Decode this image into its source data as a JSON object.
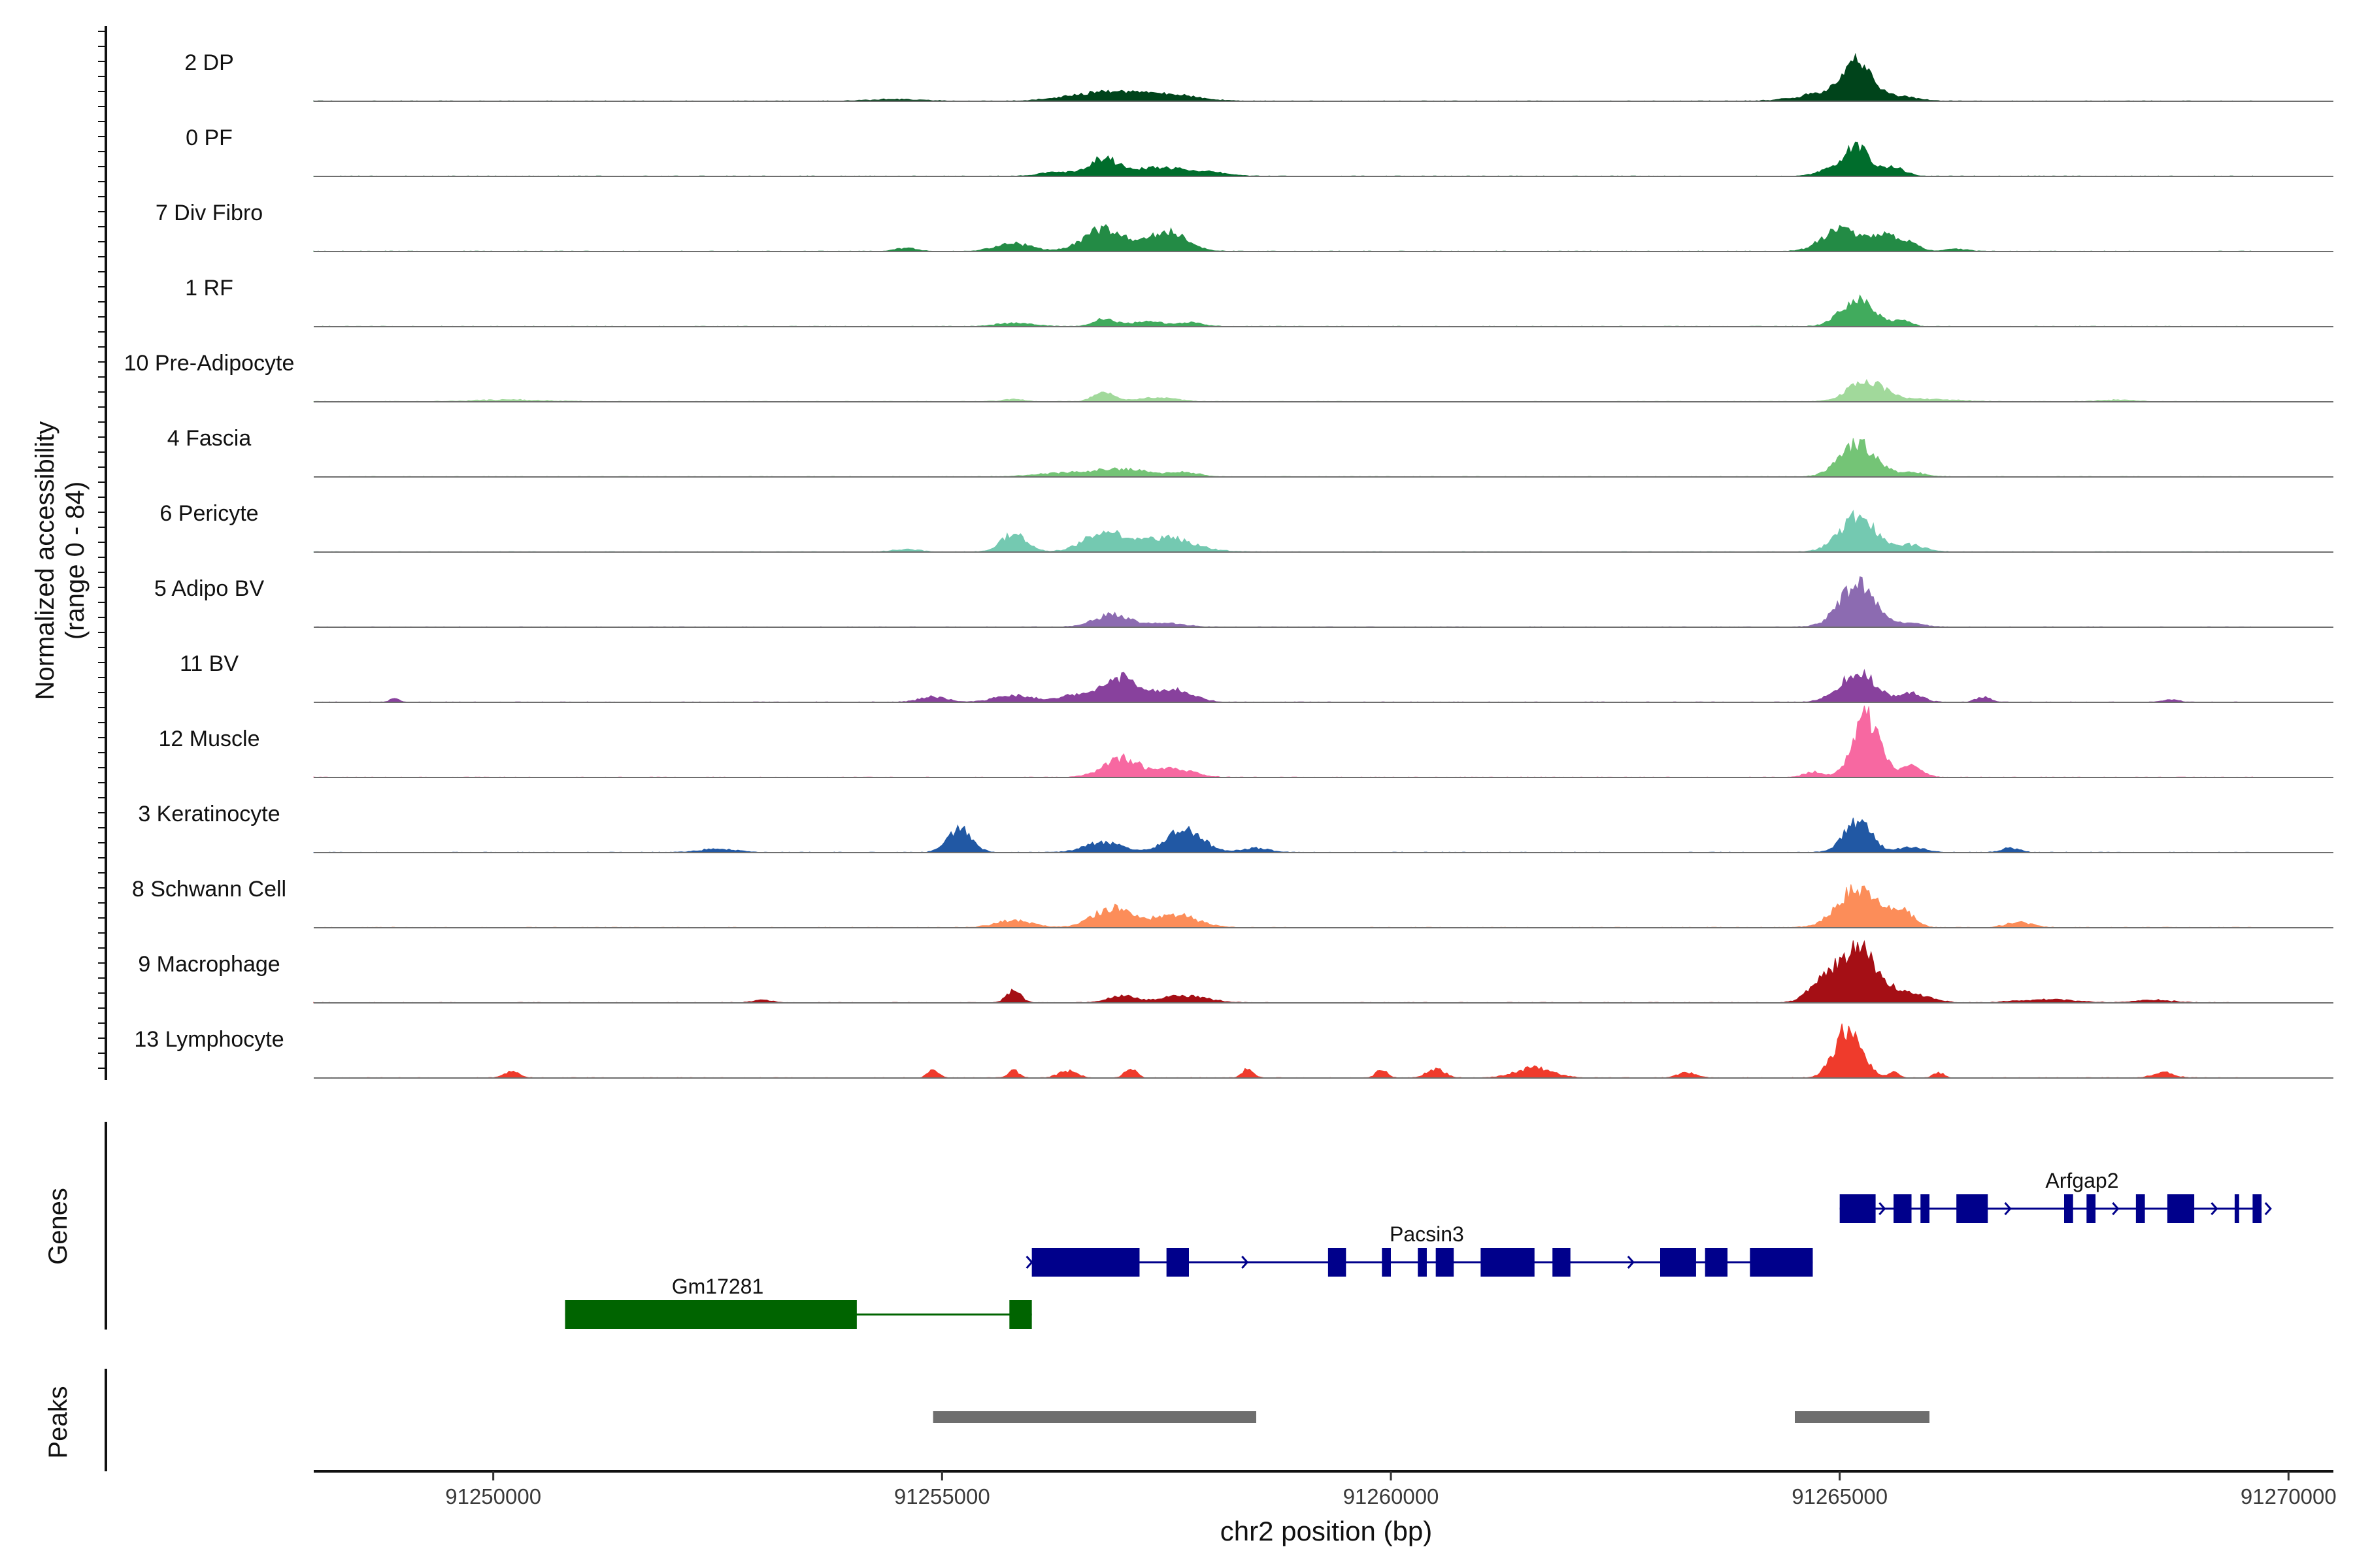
{
  "chart_data": {
    "type": "area",
    "chromosome": "chr2",
    "xlabel": "chr2 position (bp)",
    "xlim": [
      91248000,
      91270500
    ],
    "x_ticks": [
      91250000,
      91255000,
      91260000,
      91265000,
      91270000
    ],
    "x_tick_labels": [
      "91250000",
      "91255000",
      "91260000",
      "91265000",
      "91270000"
    ],
    "ylabel_line1": "Normalized accessibility",
    "ylabel_line2": "(range 0 - 84)",
    "y_range": [
      0,
      84
    ],
    "panel_labels": {
      "genes": "Genes",
      "peaks": "Peaks"
    },
    "background_noise_range": [
      91248000,
      91269600
    ],
    "tracks": [
      {
        "name": "2 DP",
        "color": "#00441b",
        "peaks": [
          [
            91256800,
            10,
            380
          ],
          [
            91257500,
            7,
            320
          ],
          [
            91254500,
            2,
            300
          ],
          [
            91265200,
            36,
            150
          ],
          [
            91265000,
            12,
            350
          ],
          [
            91265700,
            4,
            180
          ]
        ]
      },
      {
        "name": "0 PF",
        "color": "#006d2c",
        "peaks": [
          [
            91256300,
            5,
            200
          ],
          [
            91256800,
            20,
            150
          ],
          [
            91257400,
            10,
            300
          ],
          [
            91258000,
            4,
            200
          ],
          [
            91265200,
            34,
            140
          ],
          [
            91265600,
            10,
            120
          ],
          [
            91264900,
            8,
            150
          ]
        ]
      },
      {
        "name": "7 Div Fibro",
        "color": "#238b45",
        "peaks": [
          [
            91254600,
            4,
            120
          ],
          [
            91255800,
            9,
            200
          ],
          [
            91256800,
            26,
            220
          ],
          [
            91257500,
            22,
            220
          ],
          [
            91265000,
            24,
            200
          ],
          [
            91265500,
            18,
            180
          ],
          [
            91265800,
            6,
            100
          ],
          [
            91266300,
            3,
            120
          ]
        ]
      },
      {
        "name": "1 RF",
        "color": "#41ab5d",
        "peaks": [
          [
            91255800,
            4,
            200
          ],
          [
            91256800,
            8,
            120
          ],
          [
            91257300,
            5,
            250
          ],
          [
            91257800,
            4,
            120
          ],
          [
            91265200,
            32,
            180
          ],
          [
            91265700,
            6,
            100
          ]
        ]
      },
      {
        "name": "10 Pre-Adipocyte",
        "color": "#a1d99b",
        "peaks": [
          [
            91250200,
            2,
            400
          ],
          [
            91255800,
            3,
            120
          ],
          [
            91256800,
            10,
            120
          ],
          [
            91257400,
            5,
            200
          ],
          [
            91265300,
            24,
            200
          ],
          [
            91266000,
            3,
            300
          ],
          [
            91268100,
            2,
            200
          ]
        ]
      },
      {
        "name": "4 Fascia",
        "color": "#74c476",
        "peaks": [
          [
            91256300,
            4,
            300
          ],
          [
            91257000,
            9,
            300
          ],
          [
            91257700,
            5,
            150
          ],
          [
            91265200,
            38,
            200
          ],
          [
            91265800,
            5,
            150
          ]
        ]
      },
      {
        "name": "6 Pericyte",
        "color": "#74c9b1",
        "peaks": [
          [
            91254600,
            3,
            150
          ],
          [
            91255800,
            20,
            140
          ],
          [
            91256800,
            22,
            220
          ],
          [
            91257500,
            16,
            300
          ],
          [
            91265200,
            40,
            200
          ],
          [
            91265800,
            8,
            150
          ]
        ]
      },
      {
        "name": "5 Adipo BV",
        "color": "#8c6bb1",
        "peaks": [
          [
            91256900,
            14,
            200
          ],
          [
            91257500,
            4,
            200
          ],
          [
            91265200,
            48,
            200
          ],
          [
            91265800,
            4,
            150
          ]
        ]
      },
      {
        "name": "11 BV",
        "color": "#88419d",
        "peaks": [
          [
            91248900,
            5,
            50
          ],
          [
            91254900,
            6,
            150
          ],
          [
            91255800,
            8,
            200
          ],
          [
            91256500,
            8,
            200
          ],
          [
            91257000,
            28,
            200
          ],
          [
            91257600,
            14,
            200
          ],
          [
            91265200,
            34,
            200
          ],
          [
            91265800,
            10,
            120
          ],
          [
            91266600,
            6,
            80
          ],
          [
            91268700,
            3,
            80
          ]
        ]
      },
      {
        "name": "12 Muscle",
        "color": "#f768a1",
        "peaks": [
          [
            91257000,
            22,
            200
          ],
          [
            91257600,
            10,
            200
          ],
          [
            91265300,
            68,
            150
          ],
          [
            91264700,
            6,
            100
          ],
          [
            91265800,
            12,
            120
          ]
        ]
      },
      {
        "name": "3 Keratinocyte",
        "color": "#2158a4",
        "peaks": [
          [
            91252500,
            4,
            200
          ],
          [
            91255200,
            28,
            130
          ],
          [
            91256800,
            12,
            200
          ],
          [
            91257700,
            26,
            200
          ],
          [
            91258500,
            5,
            150
          ],
          [
            91265200,
            36,
            150
          ],
          [
            91265800,
            6,
            150
          ],
          [
            91266900,
            5,
            100
          ]
        ]
      },
      {
        "name": "8 Schwann Cell",
        "color": "#fc8d59",
        "peaks": [
          [
            91255800,
            8,
            200
          ],
          [
            91256900,
            22,
            220
          ],
          [
            91257600,
            14,
            250
          ],
          [
            91265200,
            46,
            220
          ],
          [
            91265700,
            20,
            120
          ],
          [
            91267000,
            6,
            150
          ]
        ]
      },
      {
        "name": "9 Macrophage",
        "color": "#a50f15",
        "peaks": [
          [
            91253000,
            3,
            100
          ],
          [
            91255800,
            14,
            80
          ],
          [
            91257000,
            8,
            150
          ],
          [
            91257700,
            8,
            250
          ],
          [
            91265200,
            62,
            220
          ],
          [
            91264800,
            20,
            150
          ],
          [
            91265800,
            10,
            200
          ],
          [
            91267300,
            4,
            300
          ],
          [
            91268500,
            3,
            200
          ]
        ]
      },
      {
        "name": "13 Lymphocyte",
        "color": "#ef3b2c",
        "peaks": [
          [
            91250200,
            8,
            80
          ],
          [
            91254900,
            10,
            60
          ],
          [
            91255800,
            8,
            60
          ],
          [
            91256400,
            8,
            100
          ],
          [
            91257100,
            12,
            60
          ],
          [
            91258400,
            10,
            60
          ],
          [
            91259900,
            10,
            60
          ],
          [
            91260500,
            10,
            100
          ],
          [
            91261600,
            12,
            200
          ],
          [
            91263300,
            6,
            100
          ],
          [
            91265100,
            58,
            150
          ],
          [
            91265600,
            6,
            60
          ],
          [
            91266100,
            6,
            60
          ],
          [
            91268600,
            6,
            120
          ]
        ]
      }
    ],
    "genes": [
      {
        "name": "Gm17281",
        "strand": "-",
        "color": "#006400",
        "row": 2,
        "start": 91250800,
        "end": 91256000,
        "label_pos": 91252500,
        "exons": [
          [
            91250800,
            91254050
          ],
          [
            91255750,
            91256000
          ]
        ],
        "arrows": [
          91253700
        ]
      },
      {
        "name": "Pacsin3",
        "strand": "+",
        "color": "#00008b",
        "row": 1,
        "start": 91256000,
        "end": 91264700,
        "label_pos": 91260400,
        "exons": [
          [
            91256000,
            91257200
          ],
          [
            91257500,
            91257750
          ],
          [
            91259300,
            91259500
          ],
          [
            91259900,
            91260000
          ],
          [
            91260300,
            91260400
          ],
          [
            91260500,
            91260700
          ],
          [
            91261000,
            91261600
          ],
          [
            91261800,
            91262000
          ],
          [
            91263000,
            91263400
          ],
          [
            91263500,
            91263750
          ],
          [
            91264000,
            91264700
          ]
        ],
        "arrows": [
          91256000,
          91258400,
          91259400,
          91261900,
          91262700
        ]
      },
      {
        "name": "Arfgap2",
        "strand": "+",
        "color": "#00008b",
        "row": 0,
        "start": 91265000,
        "end": 91269700,
        "label_pos": 91267700,
        "exons": [
          [
            91265000,
            91265400
          ],
          [
            91265600,
            91265800
          ],
          [
            91265900,
            91266000
          ],
          [
            91266300,
            91266650
          ],
          [
            91267500,
            91267600
          ],
          [
            91267750,
            91267850
          ],
          [
            91268300,
            91268400
          ],
          [
            91268650,
            91268950
          ],
          [
            91269400,
            91269450
          ],
          [
            91269600,
            91269700
          ]
        ],
        "arrows": [
          91265500,
          91266900,
          91268100,
          91269200,
          91269800
        ]
      }
    ],
    "peaks": [
      {
        "start": 91254900,
        "end": 91258500
      },
      {
        "start": 91264500,
        "end": 91266000
      }
    ]
  }
}
